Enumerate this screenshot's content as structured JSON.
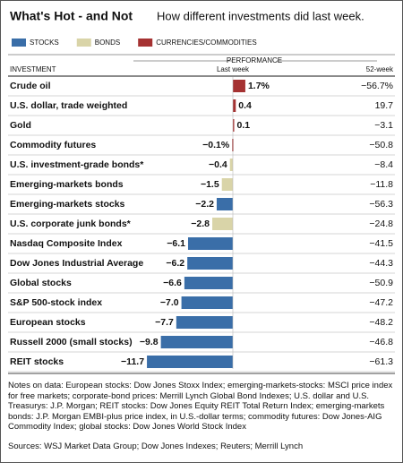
{
  "header": {
    "title": "What's Hot - and Not",
    "subtitle": "How different investments did last week."
  },
  "chart_data": {
    "type": "bar",
    "orientation": "horizontal",
    "column_headers": {
      "investment": "INVESTMENT",
      "performance": "PERFORMANCE",
      "last_week": "Last week",
      "week_52": "52-week"
    },
    "categories": [
      "Crude oil",
      "U.S. dollar, trade weighted",
      "Gold",
      "Commodity futures",
      "U.S. investment-grade bonds*",
      "Emerging-markets bonds",
      "Emerging-markets stocks",
      "U.S. corporate junk bonds*",
      "Nasdaq Composite Index",
      "Dow Jones Industrial Average",
      "Global stocks",
      "S&P 500-stock index",
      "European stocks",
      "Russell 2000 (small stocks)",
      "REIT stocks"
    ],
    "series": [
      {
        "name": "STOCKS",
        "color": "#3a6ea8",
        "values": [
          null,
          null,
          null,
          null,
          null,
          null,
          -2.2,
          null,
          -6.1,
          -6.2,
          -6.6,
          -7.0,
          -7.7,
          -9.8,
          -11.7
        ],
        "value_labels": [
          null,
          null,
          null,
          null,
          null,
          null,
          "−2.2",
          null,
          "−6.1",
          "−6.2",
          "−6.6",
          "−7.0",
          "−7.7",
          "−9.8",
          "−11.7"
        ]
      },
      {
        "name": "BONDS",
        "color": "#d9d4a8",
        "values": [
          null,
          null,
          null,
          null,
          -0.4,
          -1.5,
          null,
          -2.8,
          null,
          null,
          null,
          null,
          null,
          null,
          null
        ],
        "value_labels": [
          null,
          null,
          null,
          null,
          "−0.4",
          "−1.5",
          null,
          "−2.8",
          null,
          null,
          null,
          null,
          null,
          null,
          null
        ]
      },
      {
        "name": "CURRENCIES/COMMODITIES",
        "color": "#a53232",
        "values": [
          1.7,
          0.4,
          0.1,
          -0.1,
          null,
          null,
          null,
          null,
          null,
          null,
          null,
          null,
          null,
          null,
          null
        ],
        "value_labels": [
          "1.7%",
          "0.4",
          "0.1",
          "−0.1%",
          null,
          null,
          null,
          null,
          null,
          null,
          null,
          null,
          null,
          null,
          null
        ]
      }
    ],
    "week_52": [
      "−56.7%",
      "19.7",
      "−3.1",
      "−50.8",
      "−8.4",
      "−11.8",
      "−56.3",
      "−24.8",
      "−41.5",
      "−44.3",
      "−50.9",
      "−47.2",
      "−48.2",
      "−46.8",
      "−61.3"
    ],
    "xlim": [
      -12,
      3
    ]
  },
  "notes": "Notes on data: European stocks: Dow Jones Stoxx Index; emerging-markets-stocks: MSCI price index for free markets; corporate-bond prices: Merrill Lynch Global Bond Indexes; U.S. dollar and U.S. Treasurys: J.P. Morgan; REIT stocks: Dow Jones Equity REIT Total Return Index; emerging-markets bonds: J.P. Morgan EMBI-plus price index, in U.S.-dollar terms; commodity futures: Dow Jones-AIG Commodity Index; global stocks: Dow Jones World Stock Index",
  "sources": "Sources: WSJ Market Data Group; Dow Jones Indexes; Reuters; Merrill Lynch"
}
